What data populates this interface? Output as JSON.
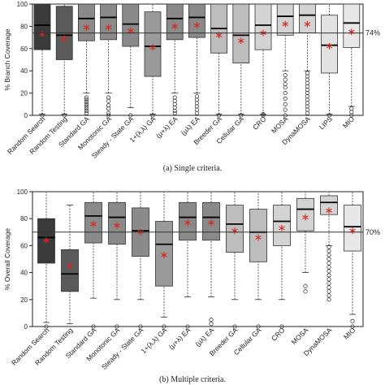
{
  "chart_data": [
    {
      "type": "box",
      "caption": "(a) Single criteria.",
      "ylabel": "% Branch Coverage",
      "ylim": [
        0,
        100
      ],
      "reference_line": {
        "value": 74,
        "label": "74%"
      },
      "categories": [
        "Random Search",
        "Random Testing",
        "Standard GA",
        "Monotonic GA",
        "Steady - State GA",
        "1+(λ,λ) GA",
        "(μ+λ) EA",
        "(μλ) EA",
        "Breeder GA",
        "Cellular GA",
        "CRO",
        "MOSA",
        "DynaMOSA",
        "LIPS",
        "MIO"
      ],
      "fill_colors": [
        "#3a3a3a",
        "#5a5a5a",
        "#8a8a8a",
        "#8a8a8a",
        "#8a8a8a",
        "#9a9a9a",
        "#8a8a8a",
        "#8a8a8a",
        "#bdbdbd",
        "#bdbdbd",
        "#d3d3d3",
        "#d3d3d3",
        "#d3d3d3",
        "#e2e2e2",
        "#e8e8e8"
      ],
      "boxes": [
        {
          "whisker_low": 1,
          "q1": 59,
          "median": 81,
          "q3": 100,
          "whisker_high": 100,
          "mean": 73,
          "outliers": [
            0
          ]
        },
        {
          "whisker_low": 1,
          "q1": 50,
          "median": 72,
          "q3": 98,
          "whisker_high": 100,
          "mean": 69,
          "outliers": [
            0
          ]
        },
        {
          "whisker_low": 20,
          "q1": 67,
          "median": 87,
          "q3": 100,
          "whisker_high": 100,
          "mean": 79,
          "outliers": [
            2,
            4,
            6,
            8,
            10,
            12,
            14,
            16
          ]
        },
        {
          "whisker_low": 20,
          "q1": 68,
          "median": 88,
          "q3": 100,
          "whisker_high": 100,
          "mean": 79,
          "outliers": [
            0,
            2,
            6,
            9,
            13,
            16
          ]
        },
        {
          "whisker_low": 7,
          "q1": 62,
          "median": 82,
          "q3": 100,
          "whisker_high": 100,
          "mean": 76,
          "outliers": [
            0
          ]
        },
        {
          "whisker_low": 1,
          "q1": 35,
          "median": 62,
          "q3": 93,
          "whisker_high": 100,
          "mean": 61,
          "outliers": [
            0
          ]
        },
        {
          "whisker_low": 20,
          "q1": 68,
          "median": 87,
          "q3": 100,
          "whisker_high": 100,
          "mean": 80,
          "outliers": [
            2,
            4,
            7,
            10,
            13,
            16
          ]
        },
        {
          "whisker_low": 20,
          "q1": 70,
          "median": 88,
          "q3": 100,
          "whisker_high": 100,
          "mean": 81,
          "outliers": [
            2,
            5,
            8,
            11,
            14,
            17
          ]
        },
        {
          "whisker_low": 1,
          "q1": 56,
          "median": 78,
          "q3": 100,
          "whisker_high": 100,
          "mean": 72,
          "outliers": [
            0
          ]
        },
        {
          "whisker_low": 1,
          "q1": 47,
          "median": 72,
          "q3": 100,
          "whisker_high": 100,
          "mean": 67,
          "outliers": [
            0
          ]
        },
        {
          "whisker_low": 1,
          "q1": 59,
          "median": 81,
          "q3": 100,
          "whisker_high": 100,
          "mean": 74,
          "outliers": [
            0,
            1
          ]
        },
        {
          "whisker_low": 40,
          "q1": 72,
          "median": 89,
          "q3": 100,
          "whisker_high": 100,
          "mean": 82,
          "outliers": [
            0,
            5,
            10,
            15,
            20,
            25,
            28,
            32,
            36
          ]
        },
        {
          "whisker_low": 40,
          "q1": 74,
          "median": 90,
          "q3": 100,
          "whisker_high": 100,
          "mean": 82,
          "outliers": [
            2,
            5,
            8,
            11,
            14,
            17,
            20,
            23,
            26,
            29,
            32,
            35,
            38
          ]
        },
        {
          "whisker_low": 1,
          "q1": 38,
          "median": 63,
          "q3": 90,
          "whisker_high": 100,
          "mean": 62,
          "outliers": [
            0
          ]
        },
        {
          "whisker_low": 8,
          "q1": 61,
          "median": 83,
          "q3": 100,
          "whisker_high": 100,
          "mean": 75,
          "outliers": [
            0,
            3,
            6
          ]
        }
      ]
    },
    {
      "type": "box",
      "caption": "(b) Multiple criteria.",
      "ylabel": "% Overall Coverage",
      "ylim": [
        0,
        100
      ],
      "reference_line": {
        "value": 70,
        "label": "70%"
      },
      "categories": [
        "Random Search",
        "Random Testing",
        "Standard GA",
        "Monotonic GA",
        "Steady - State GA",
        "1+(λ,λ) GA",
        "(μ+λ) EA",
        "(μλ) EA",
        "Breeder GA",
        "Cellular GA",
        "CRO",
        "MOSA",
        "DynaMOSA",
        "MIO"
      ],
      "fill_colors": [
        "#3a3a3a",
        "#5a5a5a",
        "#8a8a8a",
        "#8a8a8a",
        "#8a8a8a",
        "#9a9a9a",
        "#8a8a8a",
        "#8a8a8a",
        "#bdbdbd",
        "#bdbdbd",
        "#d3d3d3",
        "#d3d3d3",
        "#d3d3d3",
        "#e8e8e8"
      ],
      "boxes": [
        {
          "whisker_low": 3,
          "q1": 47,
          "median": 66,
          "q3": 80,
          "whisker_high": 100,
          "mean": 64,
          "outliers": [
            0
          ]
        },
        {
          "whisker_low": 2,
          "q1": 26,
          "median": 39,
          "q3": 57,
          "whisker_high": 90,
          "mean": 45,
          "outliers": []
        },
        {
          "whisker_low": 21,
          "q1": 62,
          "median": 82,
          "q3": 92,
          "whisker_high": 100,
          "mean": 76,
          "outliers": [
            0
          ]
        },
        {
          "whisker_low": 20,
          "q1": 61,
          "median": 81,
          "q3": 92,
          "whisker_high": 100,
          "mean": 75,
          "outliers": [
            0
          ]
        },
        {
          "whisker_low": 20,
          "q1": 52,
          "median": 71,
          "q3": 88,
          "whisker_high": 100,
          "mean": 70,
          "outliers": [
            0
          ]
        },
        {
          "whisker_low": 7,
          "q1": 30,
          "median": 61,
          "q3": 78,
          "whisker_high": 100,
          "mean": 53,
          "outliers": [
            0
          ]
        },
        {
          "whisker_low": 22,
          "q1": 64,
          "median": 81,
          "q3": 92,
          "whisker_high": 100,
          "mean": 77,
          "outliers": [
            0
          ]
        },
        {
          "whisker_low": 22,
          "q1": 64,
          "median": 81,
          "q3": 92,
          "whisker_high": 100,
          "mean": 77,
          "outliers": [
            2,
            5
          ]
        },
        {
          "whisker_low": 20,
          "q1": 55,
          "median": 76,
          "q3": 90,
          "whisker_high": 100,
          "mean": 71,
          "outliers": [
            0
          ]
        },
        {
          "whisker_low": 20,
          "q1": 48,
          "median": 70,
          "q3": 87,
          "whisker_high": 100,
          "mean": 66,
          "outliers": [
            0
          ]
        },
        {
          "whisker_low": 20,
          "q1": 60,
          "median": 78,
          "q3": 90,
          "whisker_high": 100,
          "mean": 73,
          "outliers": [
            0
          ]
        },
        {
          "whisker_low": 40,
          "q1": 71,
          "median": 87,
          "q3": 95,
          "whisker_high": 100,
          "mean": 81,
          "outliers": [
            26,
            30
          ]
        },
        {
          "whisker_low": 60,
          "q1": 83,
          "median": 92,
          "q3": 97,
          "whisker_high": 100,
          "mean": 86,
          "outliers": [
            20,
            23,
            26,
            29,
            32,
            35,
            38,
            41,
            44,
            47,
            50,
            53,
            56,
            59
          ]
        },
        {
          "whisker_low": 9,
          "q1": 56,
          "median": 74,
          "q3": 90,
          "whisker_high": 100,
          "mean": 71,
          "outliers": [
            0,
            4
          ]
        }
      ]
    }
  ]
}
